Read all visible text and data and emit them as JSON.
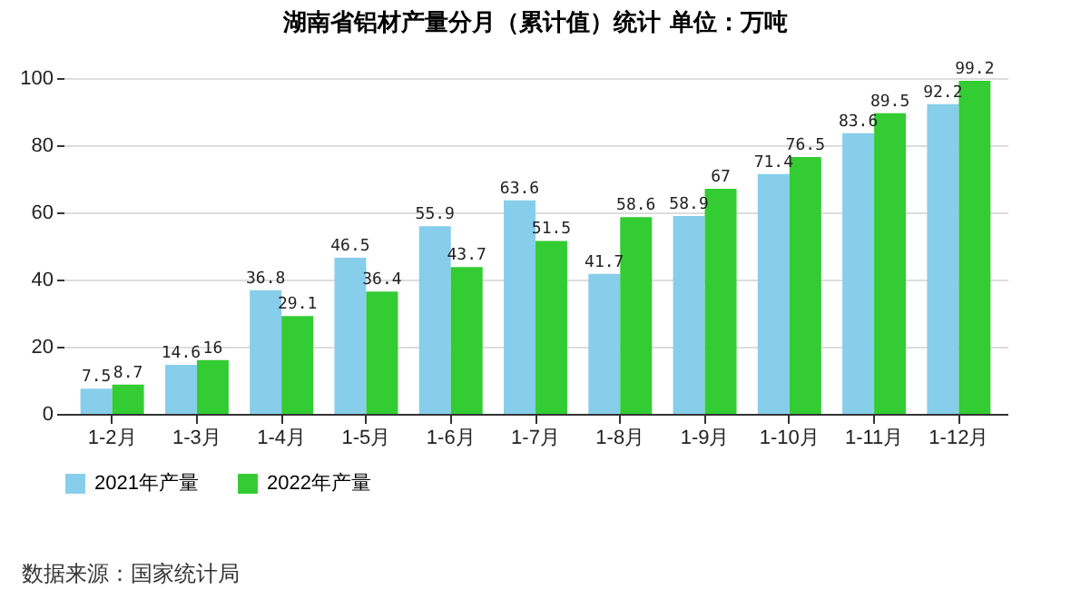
{
  "chart_data": {
    "type": "bar",
    "title": "湖南省铝材产量分月（累计值）统计  单位：万吨",
    "categories": [
      "1-2月",
      "1-3月",
      "1-4月",
      "1-5月",
      "1-6月",
      "1-7月",
      "1-8月",
      "1-9月",
      "1-10月",
      "1-11月",
      "1-12月"
    ],
    "series": [
      {
        "name": "2021年产量",
        "color": "#87ceeb",
        "values": [
          7.5,
          14.6,
          36.8,
          46.5,
          55.9,
          63.6,
          41.7,
          58.9,
          71.4,
          83.6,
          92.2
        ]
      },
      {
        "name": "2022年产量",
        "color": "#33cc33",
        "values": [
          8.7,
          16,
          29.1,
          36.4,
          43.7,
          51.5,
          58.6,
          67,
          76.5,
          89.5,
          99.2
        ]
      }
    ],
    "ylim": [
      0,
      100
    ],
    "yticks": [
      0,
      20,
      40,
      60,
      80,
      100
    ],
    "grid": "y",
    "legend": "bottom",
    "data_labels": true,
    "annotations": [
      "数据来源：国家统计局"
    ]
  }
}
